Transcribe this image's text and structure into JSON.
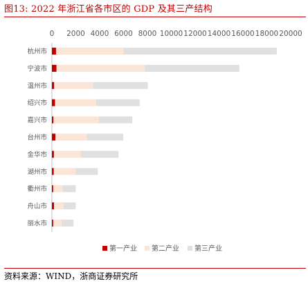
{
  "header": {
    "title": "图13:   2022 年浙江省各市区的 GDP 及其三产结构"
  },
  "footer": {
    "source": "资料来源：WIND，浙商证券研究所"
  },
  "chart_data": {
    "type": "bar",
    "orientation": "horizontal",
    "stacked": true,
    "title": "2022 年浙江省各市区的 GDP 及其三产结构",
    "xlabel": "",
    "ylabel": "",
    "xlim": [
      0,
      20000
    ],
    "x_ticks": [
      "0",
      "2000",
      "4000",
      "6000",
      "8000",
      "10000",
      "12000",
      "14000",
      "16000",
      "18000",
      "20000"
    ],
    "x_axis_position": "top",
    "grid": false,
    "legend_position": "bottom",
    "categories": [
      "杭州市",
      "宁波市",
      "温州市",
      "绍兴市",
      "嘉兴市",
      "台州市",
      "金华市",
      "湖州市",
      "衢州市",
      "舟山市",
      "丽水市"
    ],
    "series": [
      {
        "name": "第一产业",
        "color": "#c00000",
        "values": [
          345,
          385,
          190,
          260,
          130,
          305,
          170,
          160,
          110,
          175,
          110
        ]
      },
      {
        "name": "第二产业",
        "color": "#fbe5d6",
        "values": [
          5660,
          7395,
          3240,
          3440,
          3800,
          2620,
          2240,
          1830,
          790,
          790,
          700
        ]
      },
      {
        "name": "第三产业",
        "color": "#e0e0e0",
        "values": [
          12830,
          7920,
          4600,
          3650,
          2800,
          3050,
          3170,
          1860,
          1100,
          1030,
          1000
        ]
      }
    ]
  }
}
